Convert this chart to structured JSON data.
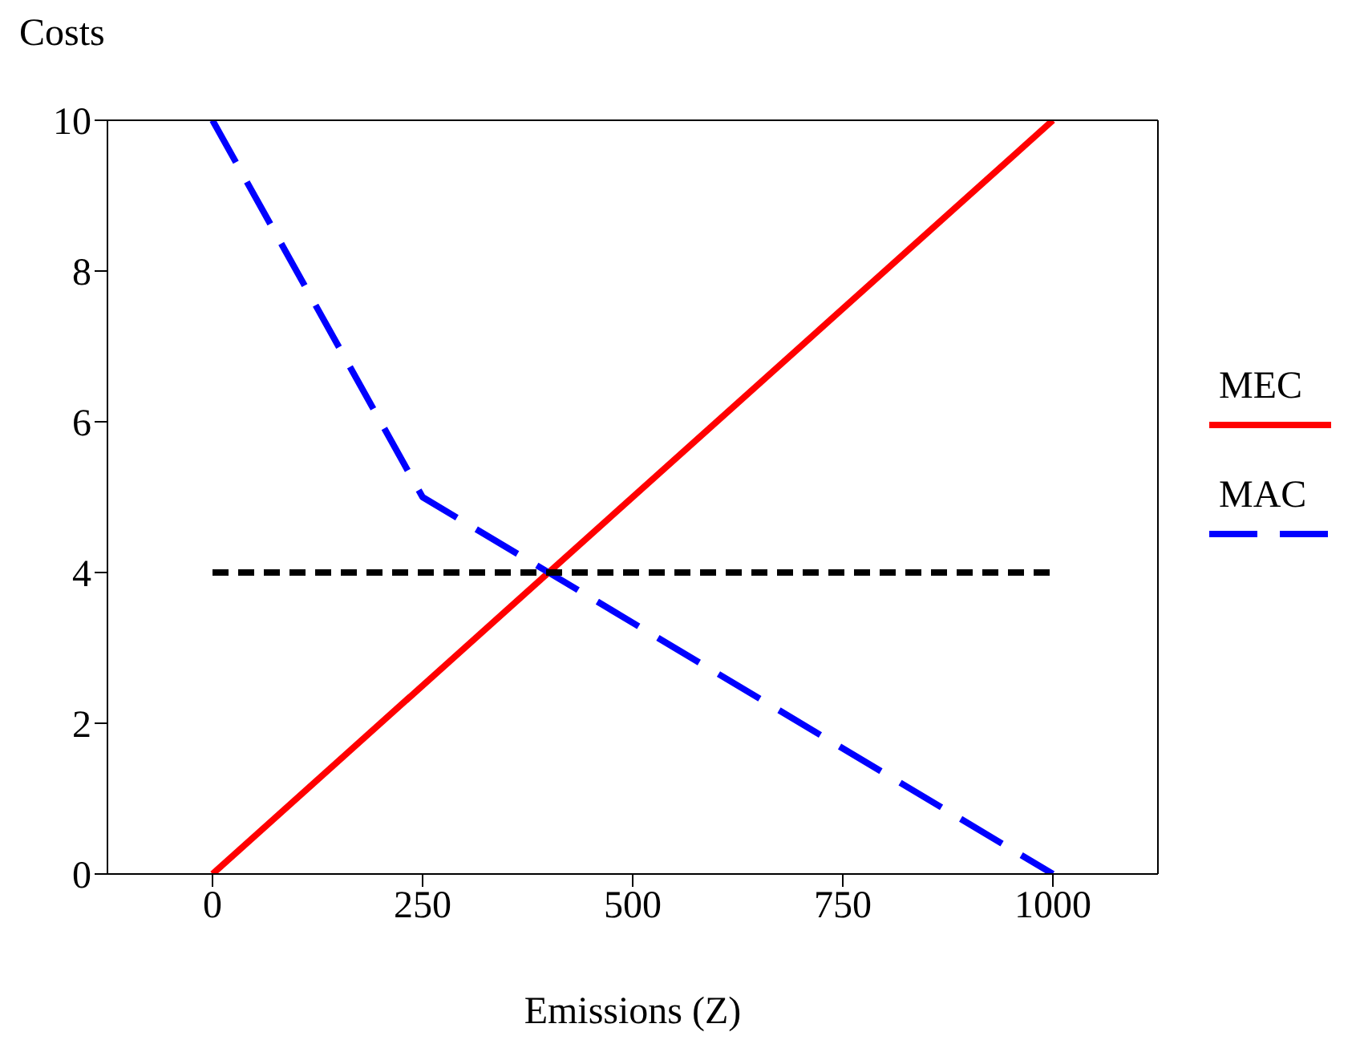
{
  "chart_data": {
    "type": "line",
    "xlabel": "Emissions (Z)",
    "ylabel": "Costs",
    "xlim": [
      -125,
      1125
    ],
    "xticks": [
      0,
      250,
      500,
      750,
      1000
    ],
    "ylim": [
      0,
      10
    ],
    "yticks": [
      0,
      2,
      4,
      6,
      8,
      10
    ],
    "legend": "right",
    "marker": "none",
    "series": [
      {
        "name": "MEC",
        "color": "#ff0000",
        "x": [
          0,
          1000
        ],
        "values": [
          0,
          10
        ],
        "line_style": "solid"
      },
      {
        "name": "MAC",
        "color": "#0000ff",
        "x": [
          0,
          250,
          1000
        ],
        "values": [
          10,
          5,
          0
        ],
        "line_style": "dashed"
      },
      {
        "color": "#000000",
        "x": [
          0,
          1000
        ],
        "values": [
          4,
          4
        ],
        "line_style": "dotted"
      }
    ]
  }
}
